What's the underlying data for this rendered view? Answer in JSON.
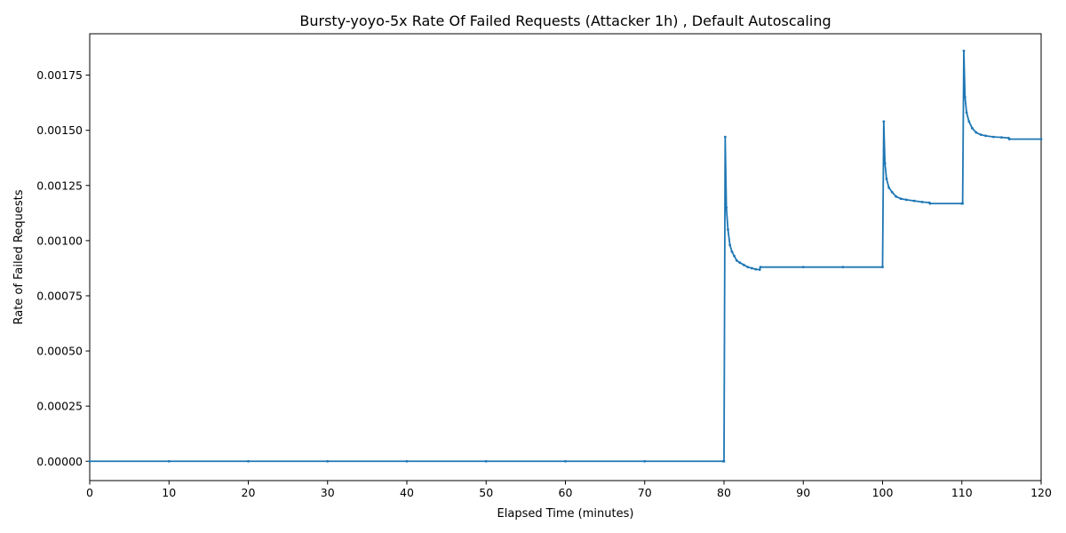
{
  "chart_data": {
    "type": "line",
    "title": "Bursty-yoyo-5x Rate Of Failed Requests (Attacker 1h) , Default Autoscaling",
    "xlabel": "Elapsed Time (minutes)",
    "ylabel": "Rate of Failed Requests",
    "xlim": [
      0,
      120
    ],
    "ylim": [
      -8.75e-05,
      0.0019375
    ],
    "xticks": [
      0,
      10,
      20,
      30,
      40,
      50,
      60,
      70,
      80,
      90,
      100,
      110,
      120
    ],
    "xtick_labels": [
      "0",
      "10",
      "20",
      "30",
      "40",
      "50",
      "60",
      "70",
      "80",
      "90",
      "100",
      "110",
      "120"
    ],
    "yticks": [
      0,
      0.00025,
      0.0005,
      0.00075,
      0.001,
      0.00125,
      0.0015,
      0.00175
    ],
    "ytick_labels": [
      "0.00000",
      "0.00025",
      "0.00050",
      "0.00075",
      "0.00100",
      "0.00125",
      "0.00150",
      "0.00175"
    ],
    "grid": false,
    "legend": "none",
    "color": "#1f77b4",
    "series": [
      {
        "x": [
          0,
          10,
          20,
          30,
          40,
          50,
          60,
          70,
          79.9,
          80.0,
          80.15,
          80.3,
          80.5,
          80.75,
          81.0,
          81.3,
          81.6,
          82.0,
          82.5,
          83.0,
          83.5,
          84.0,
          84.5,
          84.6,
          90,
          95,
          100.0,
          100.15,
          100.3,
          100.5,
          100.8,
          101.2,
          101.7,
          102.3,
          103.0,
          104.0,
          105.0,
          105.9,
          106.0,
          110.0,
          110.1,
          110.25,
          110.4,
          110.6,
          110.9,
          111.3,
          111.8,
          112.4,
          113.0,
          114.0,
          115.0,
          115.9,
          116.0,
          120
        ],
        "y": [
          0,
          0,
          0,
          0,
          0,
          0,
          0,
          0,
          0,
          0,
          0.00147,
          0.00115,
          0.00105,
          0.00098,
          0.00095,
          0.00093,
          0.00091,
          0.0009,
          0.00089,
          0.00088,
          0.000875,
          0.00087,
          0.000868,
          0.00088,
          0.00088,
          0.00088,
          0.00088,
          0.00154,
          0.00135,
          0.00128,
          0.00124,
          0.00122,
          0.0012,
          0.00119,
          0.001185,
          0.00118,
          0.001175,
          0.001172,
          0.001168,
          0.001168,
          0.001168,
          0.00186,
          0.00165,
          0.00158,
          0.00154,
          0.00151,
          0.00149,
          0.00148,
          0.001475,
          0.00147,
          0.001468,
          0.001465,
          0.00146,
          0.00146
        ]
      }
    ]
  }
}
